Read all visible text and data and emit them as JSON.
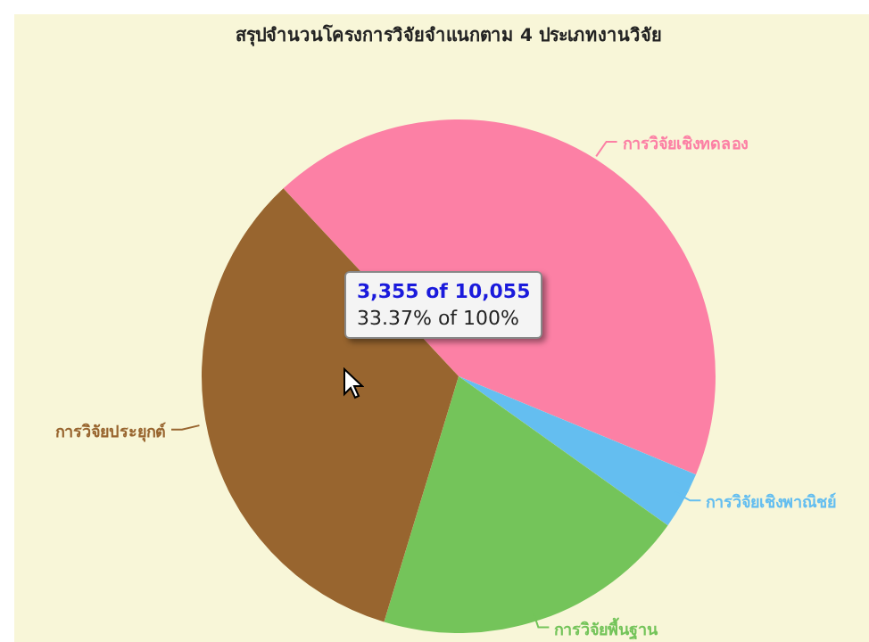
{
  "chart_data": {
    "type": "pie",
    "title": "สรุปจำนวนโครงการวิจัยจำแนกตาม 4 ประเภทงานวิจัย",
    "categories": [
      "การวิจัยเชิงทดลอง",
      "การวิจัยเชิงพาณิชย์",
      "การวิจัยพื้นฐาน",
      "การวิจัยประยุกต์"
    ],
    "values": [
      43.2,
      3.6,
      19.83,
      33.37
    ],
    "colors": [
      "#fc80a5",
      "#64bef0",
      "#74c45a",
      "#98652f"
    ],
    "annotations": [
      "3,355 of 10,055",
      "33.37% of 100%"
    ]
  }
}
